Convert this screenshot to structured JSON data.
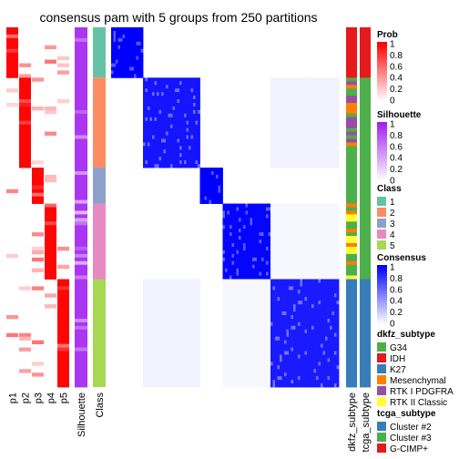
{
  "chart_data": {
    "type": "heatmap",
    "title": "consensus pam with 5 groups from 250 partitions",
    "n_samples": 100,
    "column_labels": [
      "p1",
      "p2",
      "p3",
      "p4",
      "p5",
      "Silhouette",
      "Class",
      "dkfz_subtype",
      "tcga_subtype"
    ],
    "groups": [
      {
        "class": "1",
        "size": 14
      },
      {
        "class": "2",
        "size": 25
      },
      {
        "class": "3",
        "size": 10
      },
      {
        "class": "4",
        "size": 21
      },
      {
        "class": "5",
        "size": 30
      }
    ],
    "consensus_scale": [
      0,
      1
    ],
    "prob_scale": [
      0,
      1
    ],
    "silhouette_scale": [
      0,
      1
    ],
    "legends": {
      "prob": {
        "title": "Prob",
        "ticks": [
          "1",
          "0.8",
          "0.6",
          "0.4",
          "0.2",
          "0"
        ]
      },
      "silhouette": {
        "title": "Silhouette",
        "ticks": [
          "1",
          "0.8",
          "0.6",
          "0.4",
          "0.2",
          "0"
        ]
      },
      "class": {
        "title": "Class",
        "items": [
          {
            "label": "1",
            "color": "#66c2a5"
          },
          {
            "label": "2",
            "color": "#fc8d62"
          },
          {
            "label": "3",
            "color": "#8da0cb"
          },
          {
            "label": "4",
            "color": "#e78ac3"
          },
          {
            "label": "5",
            "color": "#a6d854"
          }
        ]
      },
      "consensus": {
        "title": "Consensus",
        "ticks": [
          "1",
          "0.8",
          "0.6",
          "0.4",
          "0.2",
          "0"
        ]
      },
      "dkfz_subtype": {
        "title": "dkfz_subtype",
        "items": [
          {
            "label": "G34",
            "color": "#4daf4a"
          },
          {
            "label": "IDH",
            "color": "#e41a1c"
          },
          {
            "label": "K27",
            "color": "#377eb8"
          },
          {
            "label": "Mesenchymal",
            "color": "#ff7f00"
          },
          {
            "label": "RTK I PDGFRA",
            "color": "#984ea3"
          },
          {
            "label": "RTK II Classic",
            "color": "#ffff33"
          }
        ]
      },
      "tcga_subtype": {
        "title": "tcga_subtype",
        "items": [
          {
            "label": "Cluster #2",
            "color": "#377eb8"
          },
          {
            "label": "Cluster #3",
            "color": "#4daf4a"
          },
          {
            "label": "G-CIMP+",
            "color": "#e41a1c"
          }
        ]
      }
    },
    "colors": {
      "prob_high": "#ff0000",
      "silhouette_high": "#a020f0",
      "consensus_high": "#0000ff",
      "background": "#ffffff"
    }
  }
}
